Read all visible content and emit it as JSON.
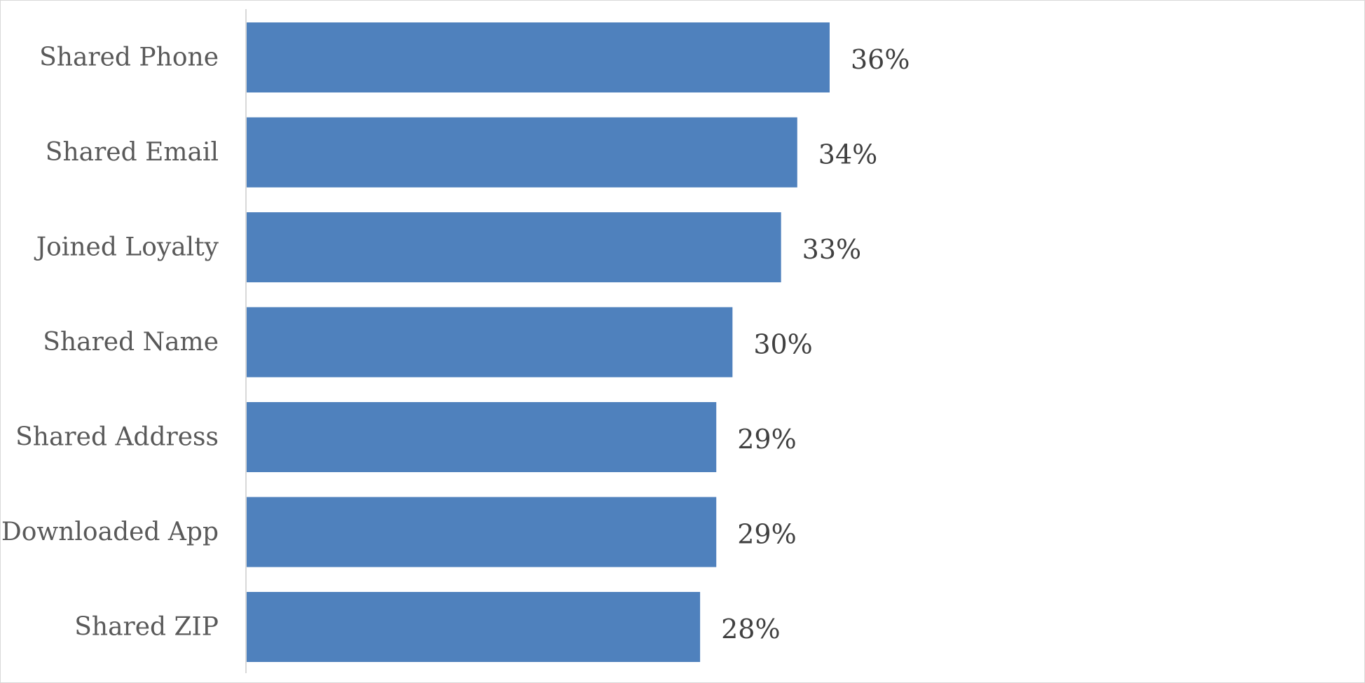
{
  "chart_data": {
    "type": "bar",
    "orientation": "horizontal",
    "categories": [
      "Shared Phone",
      "Shared Email",
      "Joined Loyalty",
      "Shared Name",
      "Shared Address",
      "Downloaded App",
      "Shared ZIP"
    ],
    "values": [
      36,
      34,
      33,
      30,
      29,
      29,
      28
    ],
    "value_labels": [
      "36%",
      "34%",
      "33%",
      "30%",
      "29%",
      "29%",
      "28%"
    ],
    "unit": "%",
    "title": "",
    "xlabel": "",
    "ylabel": "",
    "xlim": [
      0,
      100
    ],
    "grid": false,
    "legend": "none",
    "colors": {
      "bar": "#4f81bd",
      "axis": "#d9d9d9"
    }
  }
}
